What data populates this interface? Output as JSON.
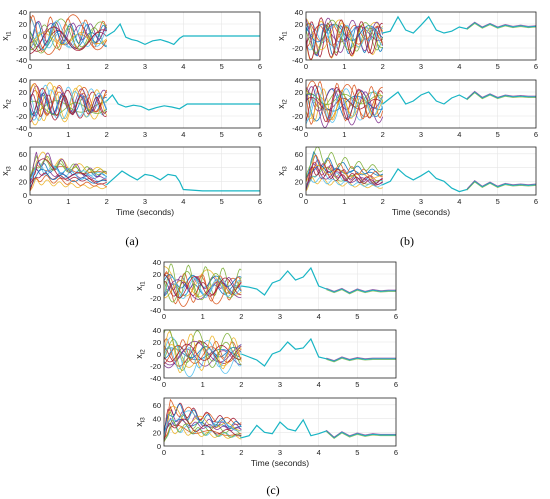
{
  "figure": {
    "captions": [
      "(a)",
      "(b)",
      "(c)"
    ]
  },
  "colors": {
    "series": [
      "#0072bd",
      "#d95319",
      "#edb120",
      "#7e2f8e",
      "#77ac30",
      "#4dbeee",
      "#a2142f"
    ],
    "merged": "#19b5c4",
    "axes": "#262626",
    "grid": "#e6e6e6"
  },
  "chart_data": [
    {
      "panel": "(a)",
      "type": "line",
      "xlabel": "Time (seconds)",
      "xlim": [
        0,
        6
      ],
      "xticks": [
        0,
        1,
        2,
        3,
        4,
        5,
        6
      ],
      "grid": true,
      "subplots": [
        {
          "ylabel": "x_{i1}",
          "ylim": [
            -40,
            40
          ],
          "yticks": [
            -40,
            -20,
            0,
            20,
            40
          ],
          "series": [
            {
              "x": [
                2.0,
                2.2,
                2.35,
                2.5,
                2.65,
                2.8,
                3.0,
                3.2,
                3.4,
                3.6,
                3.75,
                3.9,
                4.0,
                4.5,
                5.0,
                6.0
              ],
              "y": [
                0,
                8,
                20,
                -2,
                -6,
                -8,
                -14,
                -8,
                -6,
                -10,
                -14,
                -4,
                0,
                0,
                0,
                0
              ]
            }
          ]
        },
        {
          "ylabel": "x_{i2}",
          "ylim": [
            -40,
            40
          ],
          "yticks": [
            -40,
            -20,
            0,
            20,
            40
          ],
          "series": [
            {
              "x": [
                2.0,
                2.15,
                2.3,
                2.5,
                2.7,
                2.9,
                3.1,
                3.3,
                3.5,
                3.7,
                3.9,
                4.1,
                4.5,
                5.0,
                6.0
              ],
              "y": [
                5,
                15,
                0,
                -5,
                -2,
                -4,
                -10,
                -6,
                -3,
                -5,
                -8,
                0,
                0,
                0,
                0
              ]
            }
          ]
        },
        {
          "ylabel": "x_{i3}",
          "ylim": [
            0,
            70
          ],
          "yticks": [
            0,
            20,
            40,
            60
          ],
          "series": [
            {
              "x": [
                2.0,
                2.2,
                2.4,
                2.6,
                2.8,
                3.0,
                3.2,
                3.4,
                3.6,
                3.8,
                3.9,
                4.0,
                4.5,
                5.0,
                6.0
              ],
              "y": [
                15,
                25,
                35,
                28,
                22,
                30,
                28,
                22,
                30,
                28,
                20,
                8,
                6,
                6,
                6
              ]
            }
          ]
        }
      ]
    },
    {
      "panel": "(b)",
      "type": "line",
      "xlabel": "Time (seconds)",
      "xlim": [
        0,
        6
      ],
      "xticks": [
        0,
        1,
        2,
        3,
        4,
        5,
        6
      ],
      "grid": true,
      "subplots": [
        {
          "ylabel": "x_{i1}",
          "ylim": [
            -40,
            40
          ],
          "yticks": [
            -40,
            -20,
            0,
            20,
            40
          ],
          "series": [
            {
              "x": [
                2.0,
                2.2,
                2.4,
                2.6,
                2.8,
                3.0,
                3.2,
                3.4,
                3.6,
                3.8,
                4.0,
                4.2,
                4.4,
                4.6,
                4.8,
                5.0,
                5.2,
                5.4,
                5.6,
                5.8,
                6.0
              ],
              "y": [
                5,
                8,
                32,
                10,
                5,
                18,
                32,
                10,
                5,
                8,
                15,
                12,
                22,
                14,
                20,
                14,
                18,
                15,
                17,
                15,
                16
              ]
            }
          ]
        },
        {
          "ylabel": "x_{i2}",
          "ylim": [
            -40,
            40
          ],
          "yticks": [
            -40,
            -20,
            0,
            20,
            40
          ],
          "series": [
            {
              "x": [
                2.0,
                2.2,
                2.4,
                2.6,
                2.8,
                3.0,
                3.2,
                3.4,
                3.6,
                3.8,
                4.0,
                4.2,
                4.4,
                4.6,
                4.8,
                5.0,
                5.2,
                5.4,
                5.6,
                5.8,
                6.0
              ],
              "y": [
                0,
                10,
                20,
                0,
                5,
                15,
                20,
                5,
                0,
                10,
                15,
                8,
                20,
                10,
                16,
                10,
                14,
                12,
                13,
                12,
                12
              ]
            }
          ]
        },
        {
          "ylabel": "x_{i3}",
          "ylim": [
            0,
            70
          ],
          "yticks": [
            0,
            20,
            40,
            60
          ],
          "series": [
            {
              "x": [
                2.0,
                2.2,
                2.4,
                2.6,
                2.8,
                3.0,
                3.2,
                3.4,
                3.6,
                3.8,
                4.0,
                4.2,
                4.4,
                4.6,
                4.8,
                5.0,
                5.2,
                5.4,
                5.6,
                5.8,
                6.0
              ],
              "y": [
                15,
                20,
                38,
                28,
                22,
                28,
                35,
                24,
                20,
                10,
                5,
                8,
                20,
                12,
                18,
                12,
                16,
                14,
                15,
                14,
                15
              ]
            }
          ]
        }
      ]
    },
    {
      "panel": "(c)",
      "type": "line",
      "xlabel": "Time (seconds)",
      "xlim": [
        0,
        6
      ],
      "xticks": [
        0,
        1,
        2,
        3,
        4,
        5,
        6
      ],
      "grid": true,
      "subplots": [
        {
          "ylabel": "x_{i1}",
          "ylim": [
            -40,
            40
          ],
          "yticks": [
            -40,
            -20,
            0,
            20,
            40
          ],
          "series": [
            {
              "x": [
                2.0,
                2.2,
                2.4,
                2.6,
                2.8,
                3.0,
                3.2,
                3.4,
                3.6,
                3.8,
                4.0,
                4.2,
                4.4,
                4.6,
                4.8,
                5.0,
                5.2,
                5.4,
                5.6,
                5.8,
                6.0
              ],
              "y": [
                0,
                -2,
                -5,
                -15,
                5,
                10,
                25,
                10,
                15,
                30,
                0,
                -5,
                -10,
                -5,
                -12,
                -6,
                -10,
                -7,
                -9,
                -8,
                -8
              ]
            }
          ]
        },
        {
          "ylabel": "x_{i2}",
          "ylim": [
            -40,
            40
          ],
          "yticks": [
            -40,
            -20,
            0,
            20,
            40
          ],
          "series": [
            {
              "x": [
                2.0,
                2.2,
                2.4,
                2.6,
                2.8,
                3.0,
                3.2,
                3.4,
                3.6,
                3.8,
                4.0,
                4.2,
                4.4,
                4.6,
                4.8,
                5.0,
                5.2,
                5.4,
                5.6,
                5.8,
                6.0
              ],
              "y": [
                0,
                -5,
                -10,
                -20,
                0,
                5,
                20,
                8,
                10,
                25,
                -5,
                -8,
                -12,
                -6,
                -10,
                -7,
                -9,
                -8,
                -8,
                -8,
                -8
              ]
            }
          ]
        },
        {
          "ylabel": "x_{i3}",
          "ylim": [
            0,
            70
          ],
          "yticks": [
            0,
            20,
            40,
            60
          ],
          "series": [
            {
              "x": [
                2.0,
                2.2,
                2.4,
                2.6,
                2.8,
                3.0,
                3.2,
                3.4,
                3.6,
                3.8,
                4.0,
                4.2,
                4.4,
                4.6,
                4.8,
                5.0,
                5.2,
                5.4,
                5.6,
                5.8,
                6.0
              ],
              "y": [
                12,
                15,
                30,
                20,
                18,
                35,
                25,
                22,
                38,
                15,
                18,
                22,
                12,
                20,
                14,
                18,
                15,
                17,
                16,
                16,
                16
              ]
            }
          ]
        }
      ]
    }
  ]
}
